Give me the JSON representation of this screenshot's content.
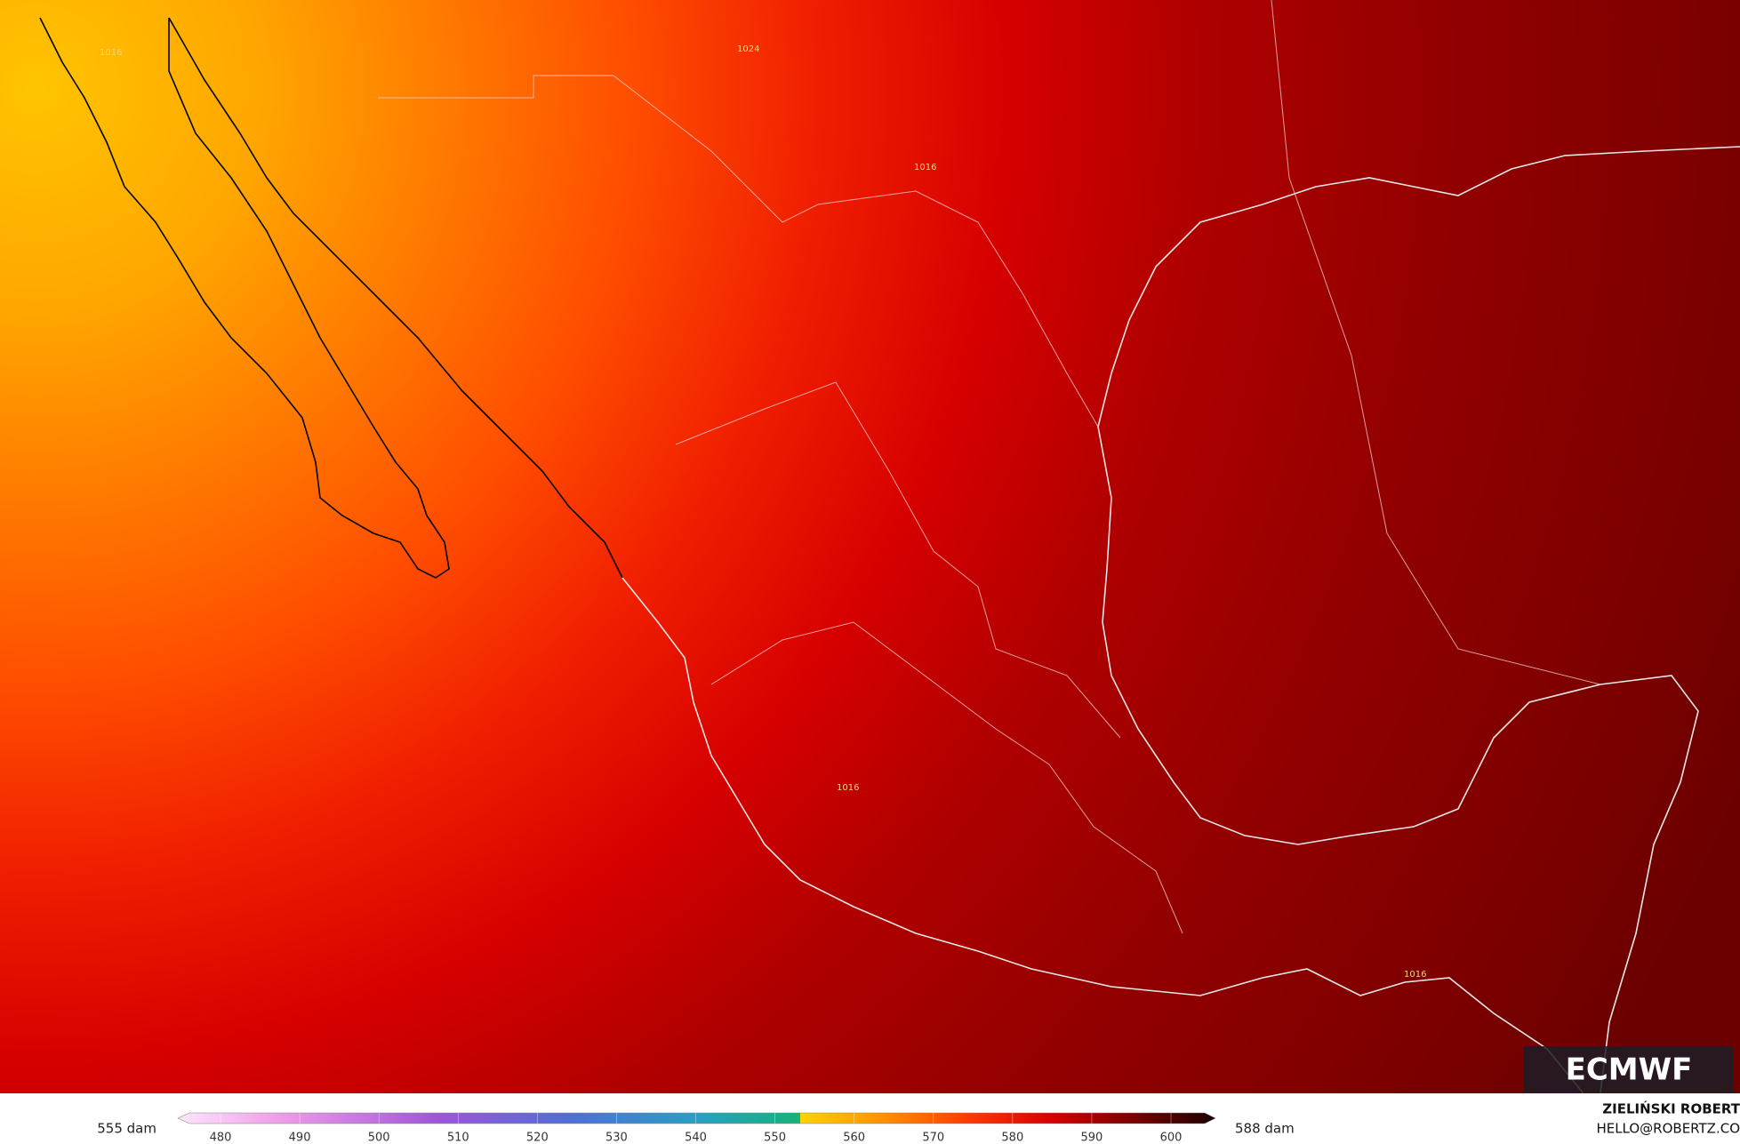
{
  "map": {
    "contour_labels": [
      "1016",
      "1024",
      "1016",
      "1016",
      "1016"
    ],
    "logo": "ECMWF"
  },
  "colorbar": {
    "left_label": "555 dam",
    "right_label": "588 dam",
    "ticks": [
      480,
      490,
      500,
      510,
      520,
      530,
      540,
      550,
      560,
      570,
      580,
      590,
      600
    ]
  },
  "credits": {
    "author": "ZIELIŃSKI ROBERT",
    "contact": "HELLO@ROBERTZ.CO"
  }
}
